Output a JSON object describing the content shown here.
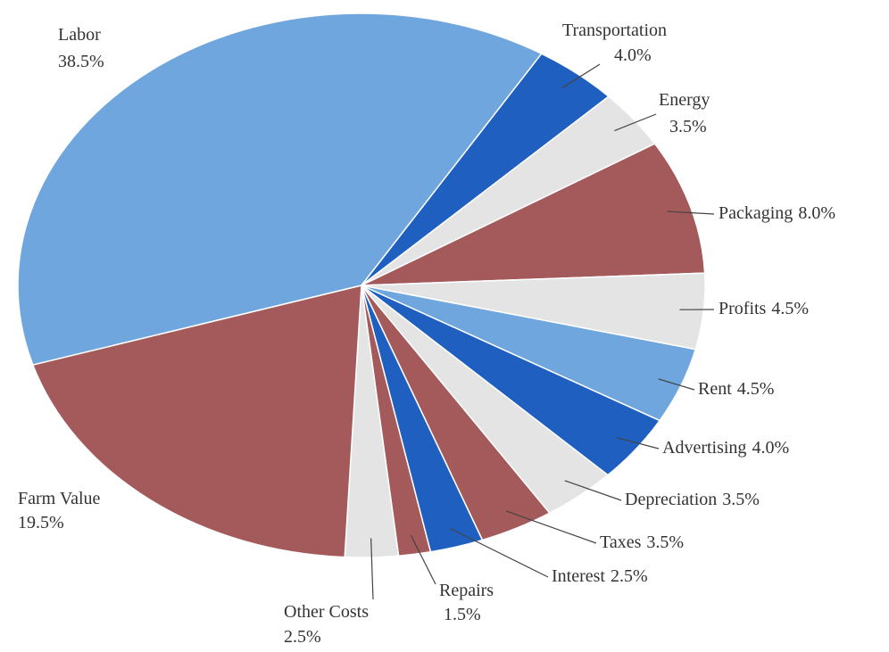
{
  "chart_data": {
    "type": "pie",
    "categories": [
      "Labor",
      "Transportation",
      "Energy",
      "Packaging",
      "Profits",
      "Rent",
      "Advertising",
      "Depreciation",
      "Taxes",
      "Interest",
      "Repairs",
      "Other Costs",
      "Farm Value"
    ],
    "values": [
      38.5,
      4.0,
      3.5,
      8.0,
      4.5,
      4.5,
      4.0,
      3.5,
      3.5,
      2.5,
      1.5,
      2.5,
      19.5
    ],
    "value_labels": [
      "38.5%",
      "4.0%",
      "3.5%",
      "8.0%",
      "4.5%",
      "4.5%",
      "4.0%",
      "3.5%",
      "3.5%",
      "2.5%",
      "1.5%",
      "2.5%",
      "19.5%"
    ],
    "colors": [
      "#6fa6dd",
      "#1f5fbf",
      "#e4e4e4",
      "#a45a5a",
      "#e4e4e4",
      "#6fa6dd",
      "#1f5fbf",
      "#e4e4e4",
      "#a45a5a",
      "#1f5fbf",
      "#a45a5a",
      "#e4e4e4",
      "#a45a5a"
    ]
  }
}
